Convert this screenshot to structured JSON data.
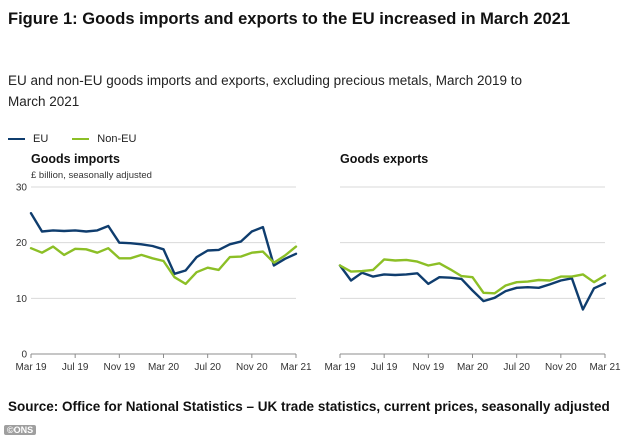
{
  "figure": {
    "title": "Figure 1: Goods imports and exports to the EU increased in March 2021",
    "subtitle": "EU and non-EU goods imports and exports, excluding precious metals, March 2019 to March 2021",
    "source": "Source: Office for National Statistics – UK trade statistics, current prices, seasonally adjusted",
    "watermark": "©ONS"
  },
  "legend": [
    {
      "name": "EU",
      "color": "#0f3d6e"
    },
    {
      "name": "Non-EU",
      "color": "#8cbf26"
    }
  ],
  "chart_data": [
    {
      "type": "line",
      "title": "Goods imports",
      "ylabel": "£ billion, seasonally adjusted",
      "ylim": [
        0,
        30
      ],
      "yticks": [
        "0",
        "10",
        "20",
        "30"
      ],
      "grid": true,
      "legend_position": "top-left",
      "x": [
        "Mar 19",
        "Apr 19",
        "May 19",
        "Jun 19",
        "Jul 19",
        "Aug 19",
        "Sep 19",
        "Oct 19",
        "Nov 19",
        "Dec 19",
        "Jan 20",
        "Feb 20",
        "Mar 20",
        "Apr 20",
        "May 20",
        "Jun 20",
        "Jul 20",
        "Aug 20",
        "Sep 20",
        "Oct 20",
        "Nov 20",
        "Dec 20",
        "Jan 21",
        "Feb 21",
        "Mar 21"
      ],
      "xticks": [
        "Mar 19",
        "Jul 19",
        "Nov 19",
        "Mar 20",
        "Jul 20",
        "Nov 20",
        "Mar 21"
      ],
      "series": [
        {
          "name": "EU",
          "color": "#0f3d6e",
          "values": [
            25.3,
            22.0,
            22.2,
            22.1,
            22.2,
            22.0,
            22.2,
            23.0,
            20.0,
            19.9,
            19.7,
            19.4,
            18.8,
            14.4,
            15.0,
            17.4,
            18.6,
            18.7,
            19.7,
            20.2,
            22.0,
            22.8,
            15.9,
            17.1,
            18.0
          ]
        },
        {
          "name": "Non-EU",
          "color": "#8cbf26",
          "values": [
            19.0,
            18.2,
            19.3,
            17.8,
            18.9,
            18.8,
            18.2,
            19.0,
            17.2,
            17.2,
            17.8,
            17.2,
            16.7,
            13.8,
            12.6,
            14.7,
            15.5,
            15.1,
            17.4,
            17.5,
            18.2,
            18.4,
            16.4,
            17.7,
            19.3
          ]
        }
      ]
    },
    {
      "type": "line",
      "title": "Goods exports",
      "ylim": [
        0,
        30
      ],
      "grid": true,
      "x": [
        "Mar 19",
        "Apr 19",
        "May 19",
        "Jun 19",
        "Jul 19",
        "Aug 19",
        "Sep 19",
        "Oct 19",
        "Nov 19",
        "Dec 19",
        "Jan 20",
        "Feb 20",
        "Mar 20",
        "Apr 20",
        "May 20",
        "Jun 20",
        "Jul 20",
        "Aug 20",
        "Sep 20",
        "Oct 20",
        "Nov 20",
        "Dec 20",
        "Jan 21",
        "Feb 21",
        "Mar 21"
      ],
      "xticks": [
        "Mar 19",
        "Jul 19",
        "Nov 19",
        "Mar 20",
        "Jul 20",
        "Nov 20",
        "Mar 21"
      ],
      "series": [
        {
          "name": "EU",
          "color": "#0f3d6e",
          "values": [
            15.9,
            13.2,
            14.6,
            13.9,
            14.3,
            14.2,
            14.3,
            14.5,
            12.6,
            13.8,
            13.7,
            13.5,
            11.4,
            9.5,
            10.1,
            11.3,
            11.9,
            12.0,
            11.9,
            12.5,
            13.2,
            13.6,
            8.0,
            11.8,
            12.7
          ]
        },
        {
          "name": "Non-EU",
          "color": "#8cbf26",
          "values": [
            15.9,
            14.8,
            14.9,
            15.1,
            17.0,
            16.8,
            16.9,
            16.6,
            15.9,
            16.3,
            15.2,
            14.0,
            13.8,
            11.0,
            10.9,
            12.3,
            12.9,
            13.0,
            13.3,
            13.2,
            13.9,
            13.9,
            14.3,
            12.9,
            14.1
          ]
        }
      ]
    }
  ]
}
